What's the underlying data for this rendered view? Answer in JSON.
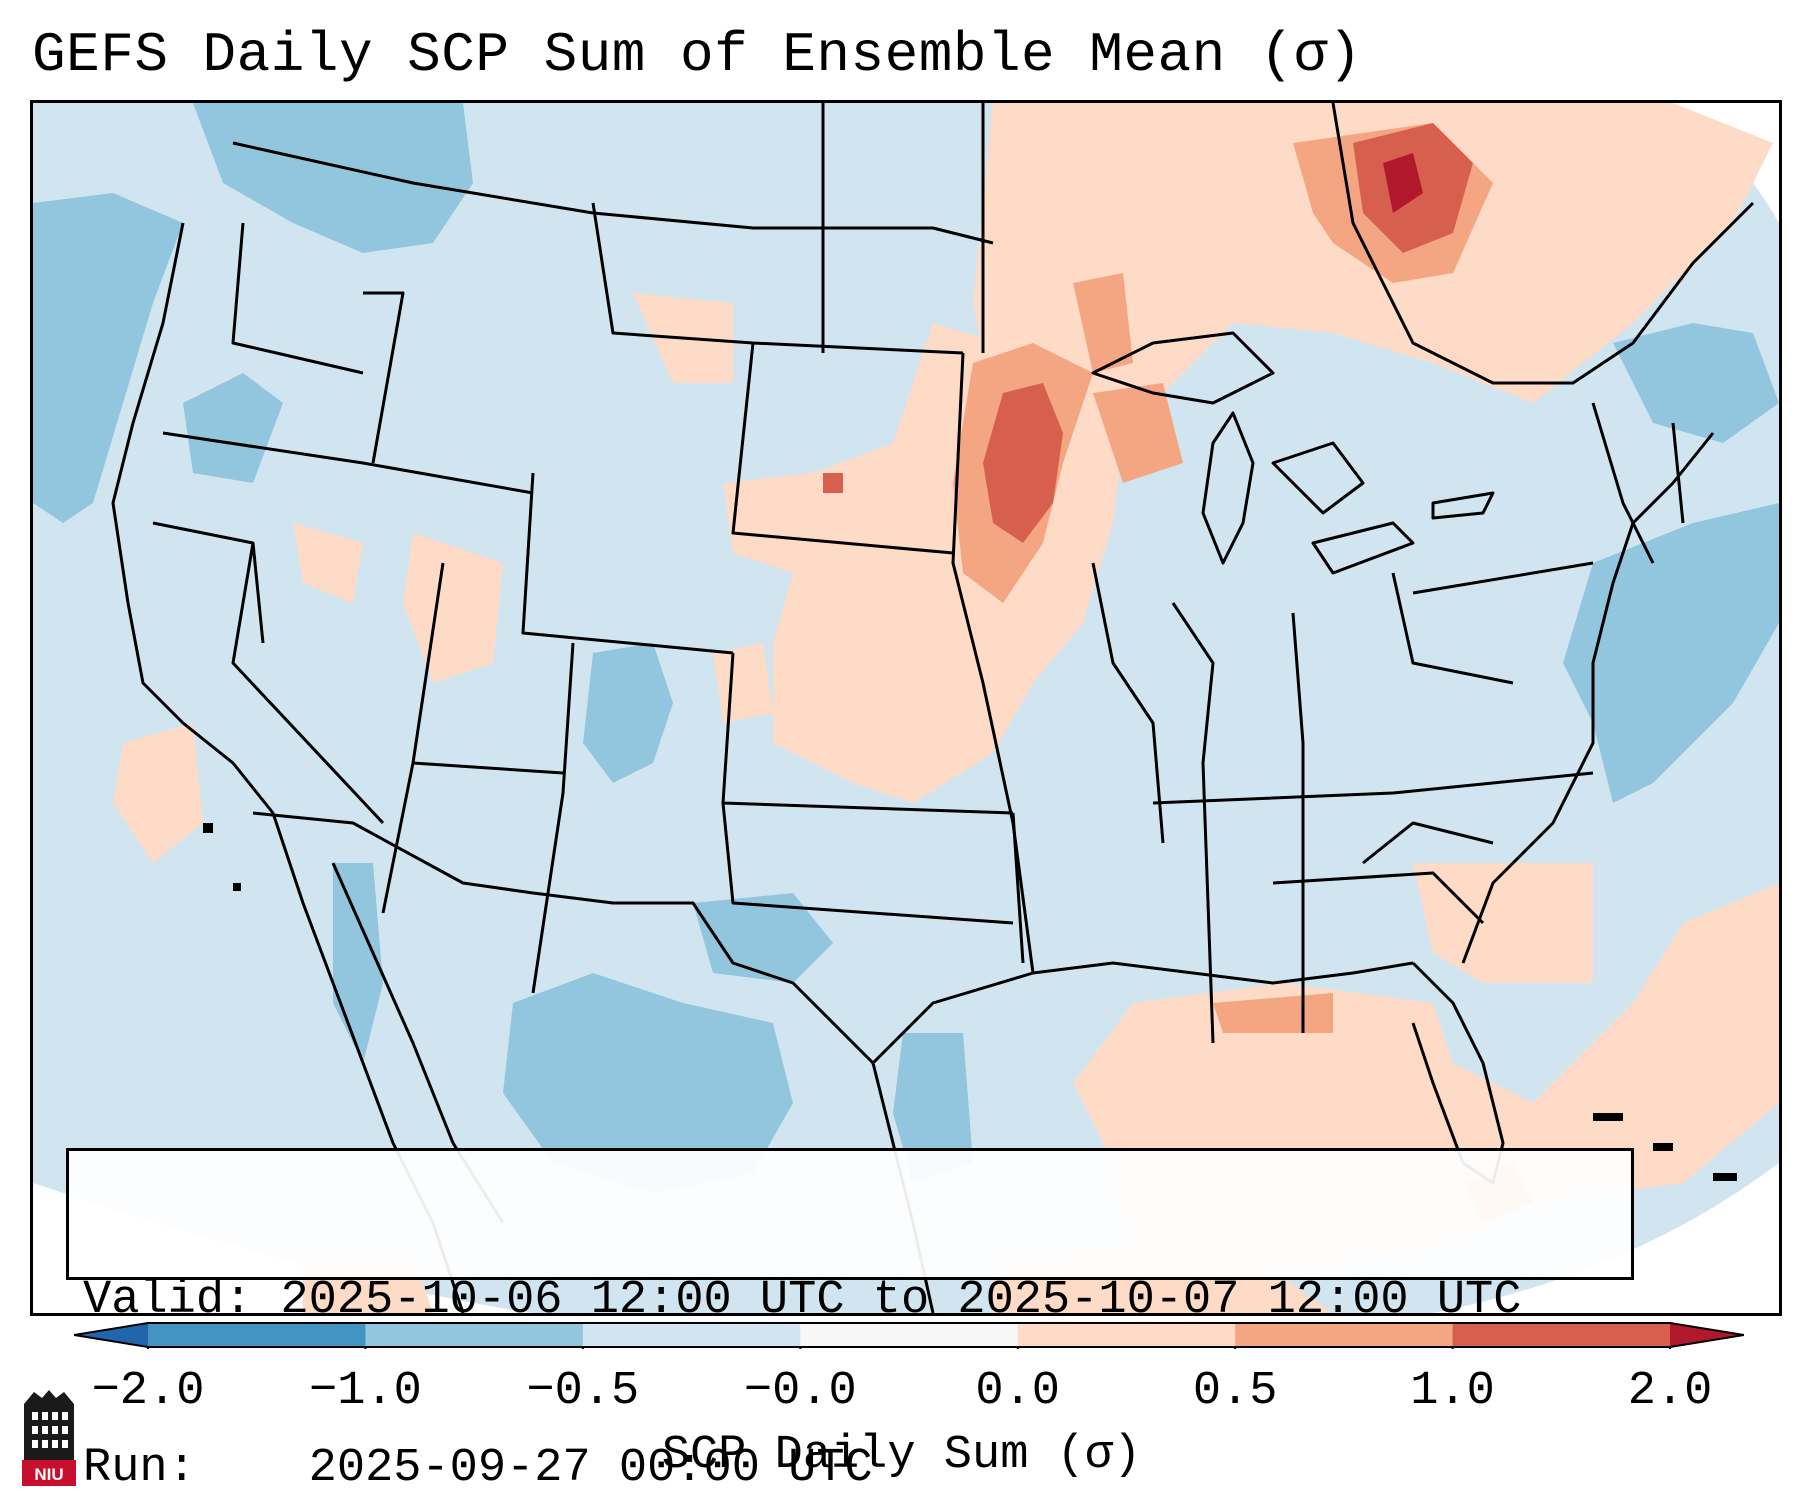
{
  "title": "GEFS Daily SCP Sum of Ensemble Mean (σ)",
  "map": {
    "region": "Continental United States",
    "colors": {
      "background": "#d1e5f0",
      "neg_strong": "#4393c3",
      "neg_mod": "#92c5de",
      "neg_weak": "#d1e5f0",
      "neutral": "#f7f7f7",
      "pos_weak": "#fddbc7",
      "pos_mod": "#f4a582",
      "pos_strong": "#d6604d",
      "pos_max": "#b2182b",
      "lines": "#000000"
    }
  },
  "info": {
    "valid_label": "Valid:",
    "valid_value": "2025-10-06 12:00 UTC to 2025-10-07 12:00 UTC",
    "run_label": "Run:",
    "run_value": "2025-09-27 00:00 UTC"
  },
  "colorbar": {
    "label": "SCP Daily Sum (σ)",
    "ticks": [
      "−2.0",
      "−1.0",
      "−0.5",
      "−0.0",
      "0.0",
      "0.5",
      "1.0",
      "2.0"
    ],
    "bins": [
      {
        "from": -2.0,
        "to": -1.0,
        "color": "#4393c3"
      },
      {
        "from": -1.0,
        "to": -0.5,
        "color": "#92c5de"
      },
      {
        "from": -0.5,
        "to": -0.0,
        "color": "#d1e5f0"
      },
      {
        "from": -0.0,
        "to": 0.0,
        "color": "#f7f7f7"
      },
      {
        "from": 0.0,
        "to": 0.5,
        "color": "#fddbc7"
      },
      {
        "from": 0.5,
        "to": 1.0,
        "color": "#f4a582"
      },
      {
        "from": 1.0,
        "to": 2.0,
        "color": "#d6604d"
      }
    ],
    "extend_min_color": "#2166ac",
    "extend_max_color": "#b2182b"
  },
  "logo": {
    "text": "NIU"
  }
}
